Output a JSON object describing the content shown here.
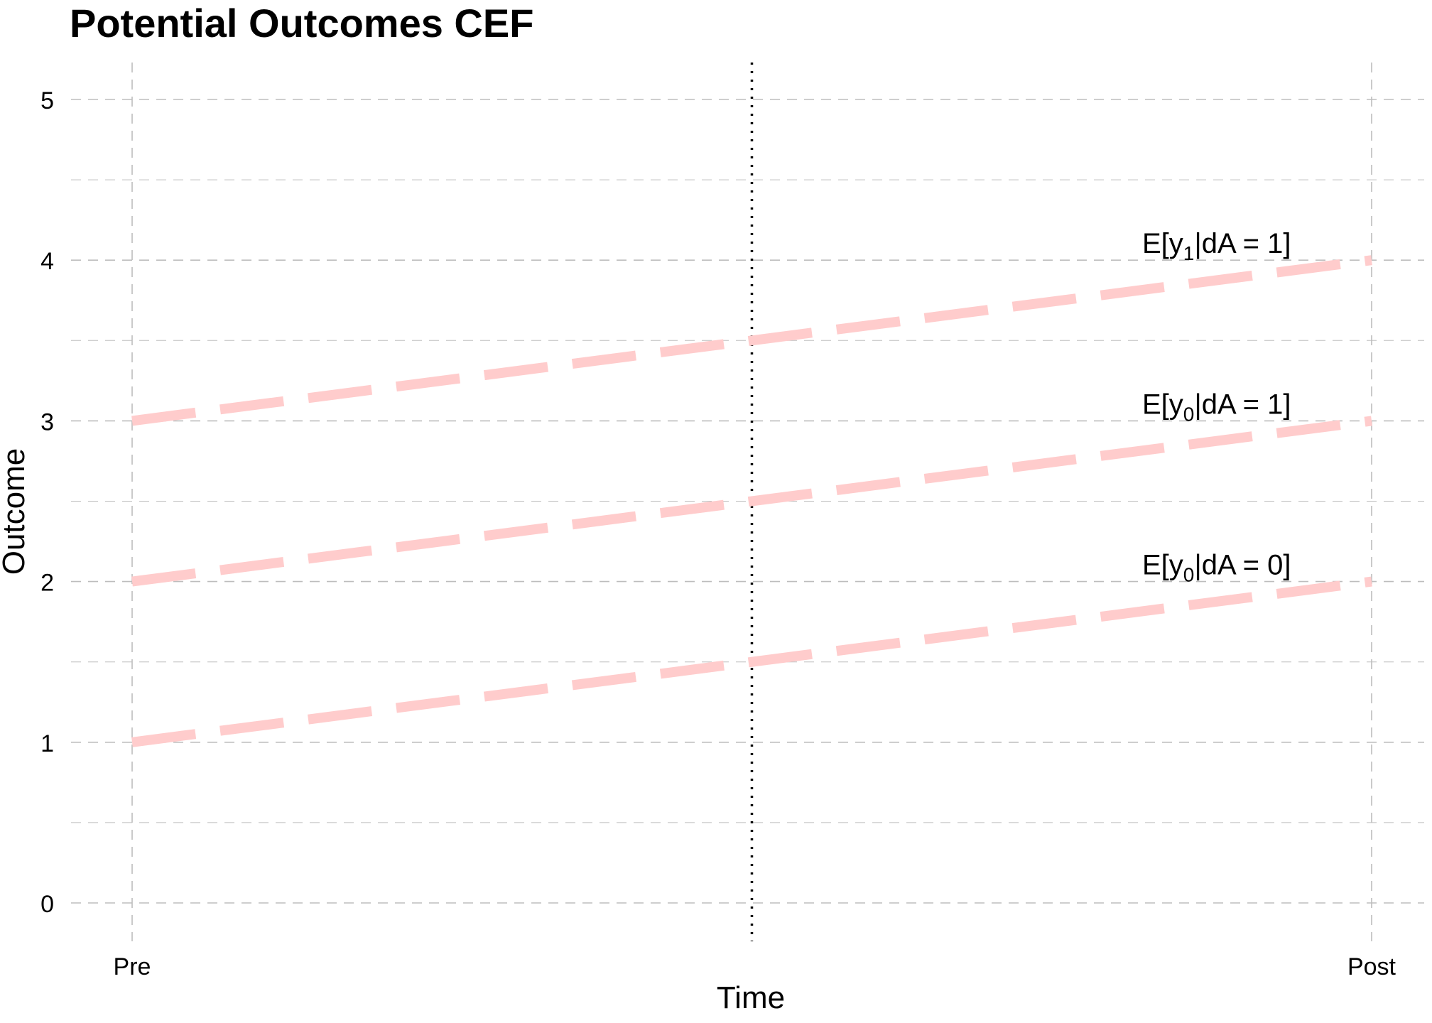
{
  "chart_data": {
    "type": "line",
    "title": "Potential Outcomes CEF",
    "xlabel": "Time",
    "ylabel": "Outcome",
    "categories": [
      "Pre",
      "Post"
    ],
    "ylim": [
      -0.25,
      5.2
    ],
    "yticks": [
      0,
      1,
      2,
      3,
      4,
      5
    ],
    "grid": true,
    "treatment_line_x": 0.5,
    "series": [
      {
        "name": "E[y1|dA = 1]",
        "label_main": "E[y",
        "label_sub": "1",
        "label_rest": "|dA = 1]",
        "values": [
          3,
          4
        ]
      },
      {
        "name": "E[y0|dA = 1]",
        "label_main": "E[y",
        "label_sub": "0",
        "label_rest": "|dA = 1]",
        "values": [
          2,
          3
        ]
      },
      {
        "name": "E[y0|dA = 0]",
        "label_main": "E[y",
        "label_sub": "0",
        "label_rest": "|dA = 0]",
        "values": [
          1,
          2
        ]
      }
    ],
    "line_color": "#ffcccc",
    "grid_color": "#bdbdbd"
  }
}
